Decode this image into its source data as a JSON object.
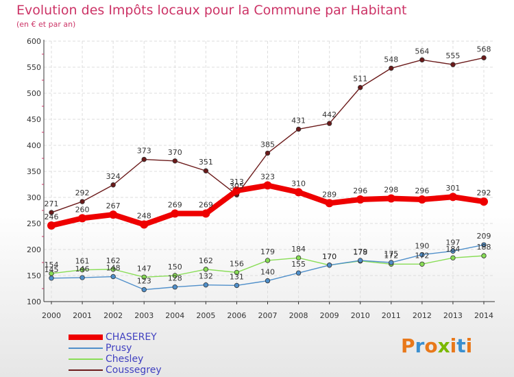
{
  "header": {
    "title": "Evolution des Impôts locaux pour la Commune par Habitant",
    "subtitle": "(en € et par an)"
  },
  "logo": {
    "text": "Proxiti",
    "colors": [
      "#e8781a",
      "#3a8fd0",
      "#e8781a",
      "#7ab800",
      "#e8781a",
      "#3a8fd0",
      "#e8781a"
    ]
  },
  "chart_data": {
    "type": "line",
    "title": "Evolution des Impôts locaux pour la Commune par Habitant",
    "subtitle": "(en € et par an)",
    "xlabel": "",
    "ylabel": "",
    "ylim": [
      100,
      600
    ],
    "yticks": [
      100,
      150,
      200,
      250,
      300,
      350,
      400,
      450,
      500,
      550,
      600
    ],
    "categories": [
      "2000",
      "2001",
      "2002",
      "2003",
      "2004",
      "2005",
      "2006",
      "2007",
      "2008",
      "2009",
      "2010",
      "2011",
      "2012",
      "2013",
      "2014"
    ],
    "legend_position": "bottom-left",
    "series": [
      {
        "name": "CHASEREY",
        "color": "#ee0000",
        "values": [
          246,
          260,
          267,
          248,
          269,
          269,
          313,
          323,
          310,
          289,
          296,
          298,
          296,
          301,
          292
        ]
      },
      {
        "name": "Prusy",
        "color": "#4f8fca",
        "values": [
          145,
          146,
          148,
          123,
          128,
          132,
          131,
          140,
          155,
          170,
          179,
          175,
          190,
          197,
          209
        ]
      },
      {
        "name": "Chesley",
        "color": "#88dd55",
        "values": [
          154,
          161,
          162,
          147,
          150,
          162,
          156,
          179,
          184,
          170,
          178,
          172,
          172,
          184,
          188
        ]
      },
      {
        "name": "Coussegrey",
        "color": "#6b1a1a",
        "values": [
          271,
          292,
          324,
          373,
          370,
          351,
          305,
          385,
          431,
          442,
          511,
          548,
          564,
          555,
          568
        ]
      }
    ]
  }
}
